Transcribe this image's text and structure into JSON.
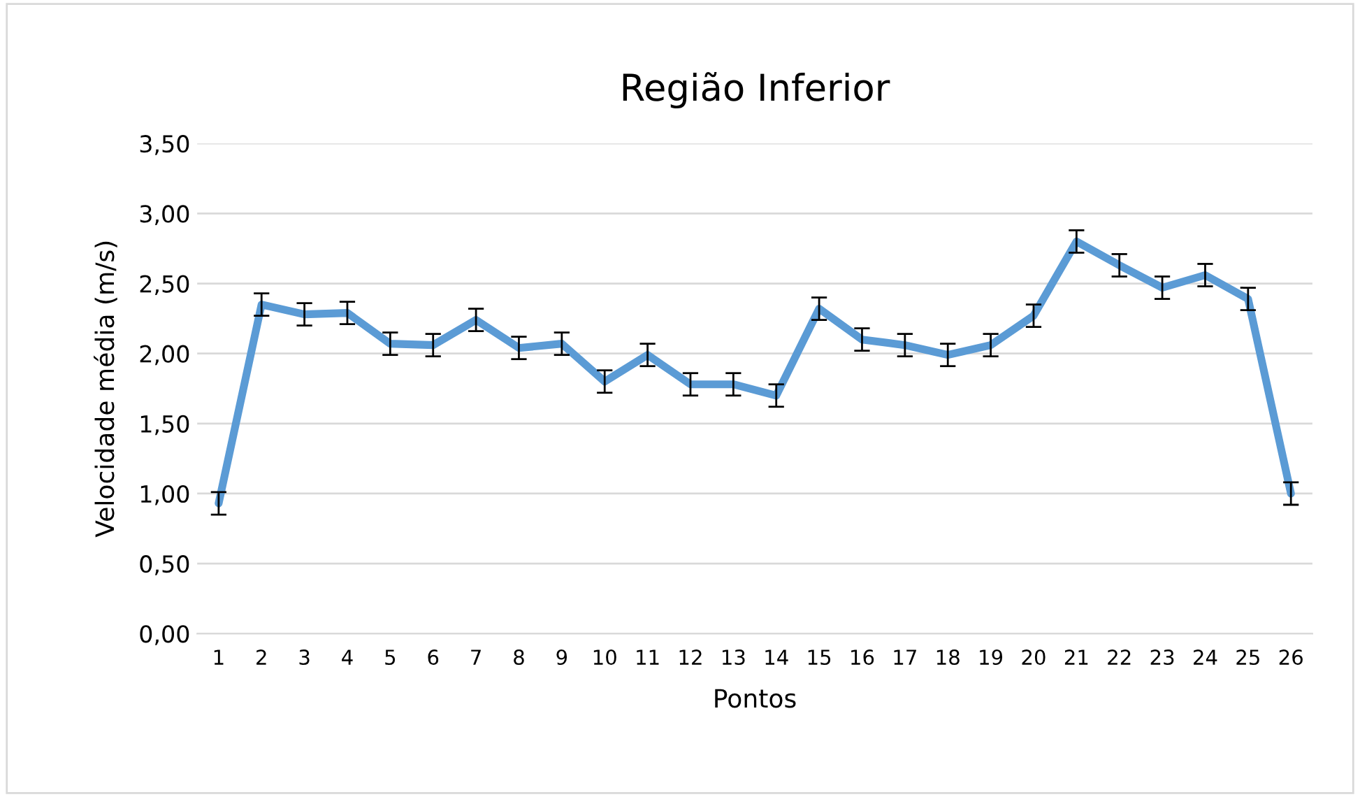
{
  "chart_data": {
    "type": "line",
    "title": "Região Inferior",
    "xlabel": "Pontos",
    "ylabel": "Velocidade média (m/s)",
    "categories": [
      "1",
      "2",
      "3",
      "4",
      "5",
      "6",
      "7",
      "8",
      "9",
      "10",
      "11",
      "12",
      "13",
      "14",
      "15",
      "16",
      "17",
      "18",
      "19",
      "20",
      "21",
      "22",
      "23",
      "24",
      "25",
      "26"
    ],
    "series": [
      {
        "color": "#5b9bd5",
        "values": [
          0.93,
          2.35,
          2.28,
          2.29,
          2.07,
          2.06,
          2.24,
          2.04,
          2.07,
          1.8,
          1.99,
          1.78,
          1.78,
          1.7,
          2.32,
          2.1,
          2.06,
          1.99,
          2.06,
          2.27,
          2.8,
          2.63,
          2.47,
          2.56,
          2.39,
          1.0
        ],
        "errors": [
          0.08,
          0.08,
          0.08,
          0.08,
          0.08,
          0.08,
          0.08,
          0.08,
          0.08,
          0.08,
          0.08,
          0.08,
          0.08,
          0.08,
          0.08,
          0.08,
          0.08,
          0.08,
          0.08,
          0.08,
          0.08,
          0.08,
          0.08,
          0.08,
          0.08,
          0.08
        ]
      }
    ],
    "ylim": [
      0,
      3.5
    ],
    "yticks": [
      {
        "value": 0,
        "label": "0,00"
      },
      {
        "value": 0.5,
        "label": "0,50"
      },
      {
        "value": 1,
        "label": "1,00"
      },
      {
        "value": 1.5,
        "label": "1,50"
      },
      {
        "value": 2,
        "label": "2,00"
      },
      {
        "value": 2.5,
        "label": "2,50"
      },
      {
        "value": 3,
        "label": "3,00"
      },
      {
        "value": 3.5,
        "label": "3,50"
      }
    ],
    "grid": "y",
    "marker": "none",
    "line_style": "solid",
    "legend": false
  }
}
